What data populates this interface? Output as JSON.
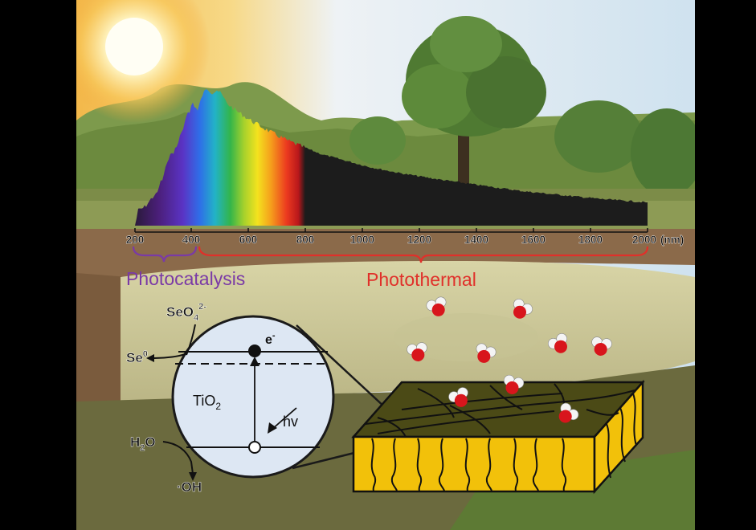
{
  "spectrum": {
    "axis_ticks": [
      "200",
      "400",
      "600",
      "800",
      "1000",
      "1200",
      "1400",
      "1600",
      "1800",
      "2000"
    ],
    "axis_unit": "(nm)",
    "photocatalysis_label": "Photocatalysis",
    "photothermal_label": "Photothermal",
    "photocatalysis_color": "#7a3aa6",
    "photothermal_color": "#e0302a"
  },
  "tio2_panel": {
    "material": "TiO",
    "material_sub": "2",
    "electron": "e",
    "electron_sup": "-",
    "photon": "hv",
    "reactant_selenate": "SeO",
    "reactant_selenate_sub": "4",
    "reactant_selenate_sup": "2-",
    "product_selenium": "Se",
    "product_selenium_sup": "0",
    "water_h": "H",
    "water_sub": "2",
    "water_o": "O",
    "hydroxyl": "·OH"
  },
  "colors": {
    "evaporator_top": "#4b4a16",
    "evaporator_side": "#f2c10a",
    "water_oxygen": "#d8151c",
    "water_hydrogen": "#f4f4f4"
  }
}
